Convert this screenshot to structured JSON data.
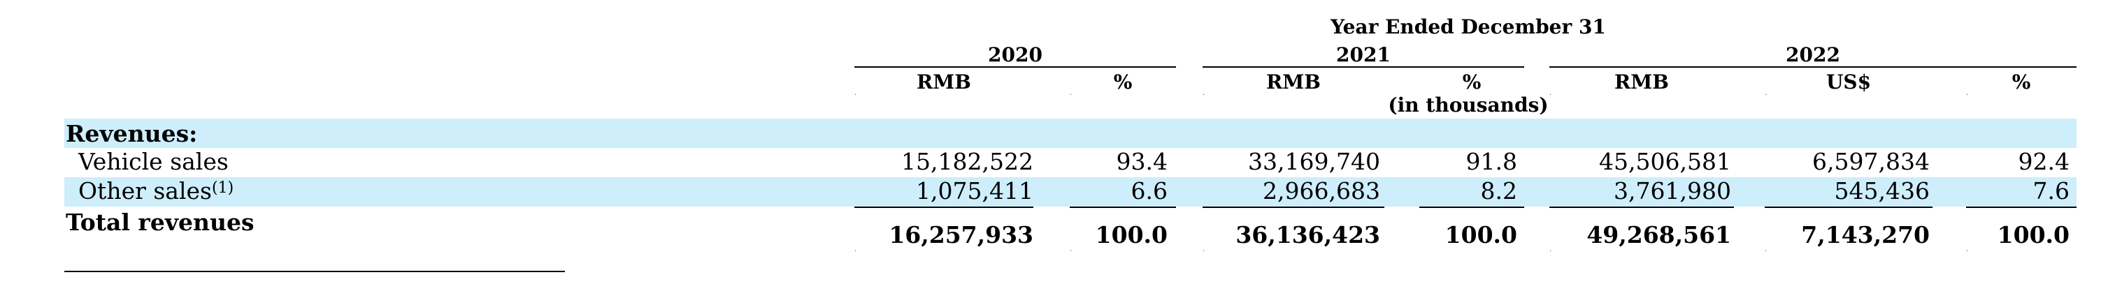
{
  "header": {
    "period_label": "Year Ended December 31",
    "unit_note": "(in thousands)",
    "years": [
      "2020",
      "2021",
      "2022"
    ],
    "columns": [
      "RMB",
      "%",
      "RMB",
      "%",
      "RMB",
      "US$",
      "%"
    ]
  },
  "band_color": "#cdeefa",
  "rows": {
    "section": {
      "label": "Revenues:"
    },
    "vehicle": {
      "label": "Vehicle sales",
      "values": [
        "15,182,522",
        "93.4",
        "33,169,740",
        "91.8",
        "45,506,581",
        "6,597,834",
        "92.4"
      ]
    },
    "other": {
      "label": "Other sales",
      "footnote": "(1)",
      "values": [
        "1,075,411",
        "6.6",
        "2,966,683",
        "8.2",
        "3,761,980",
        "545,436",
        "7.6"
      ]
    },
    "total": {
      "label": "Total revenues",
      "values": [
        "16,257,933",
        "100.0",
        "36,136,423",
        "100.0",
        "49,268,561",
        "7,143,270",
        "100.0"
      ]
    }
  }
}
